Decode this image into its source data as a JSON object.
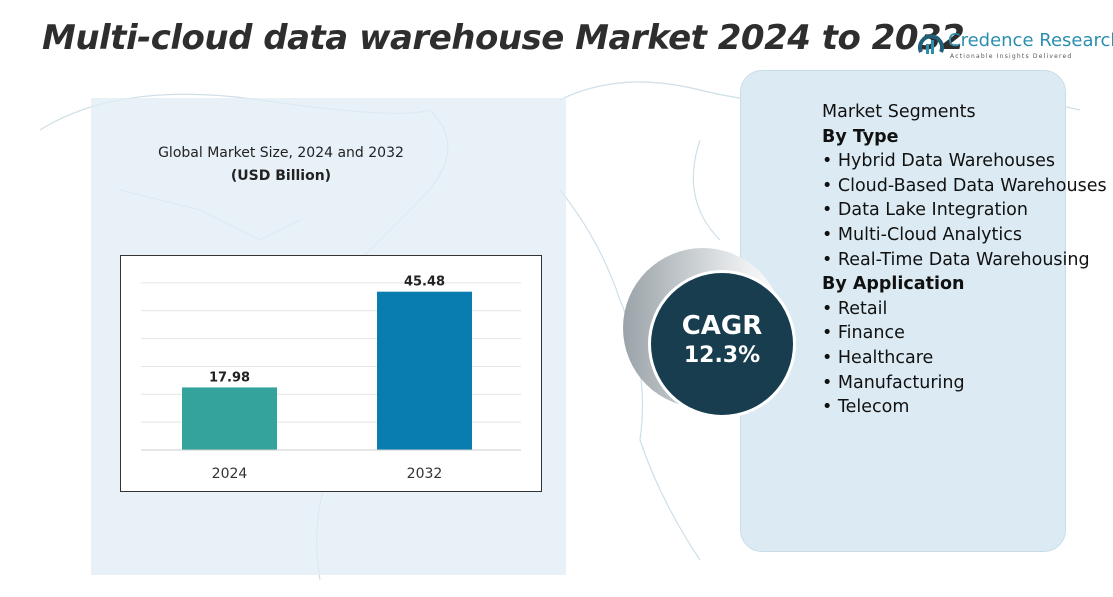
{
  "header": {
    "title": "Multi-cloud data warehouse Market 2024 to 2032"
  },
  "logo": {
    "name": "Credence Research",
    "tagline": "Actionable Insights Delivered"
  },
  "chart_data": {
    "type": "bar",
    "title": "Global Market Size, 2024 and 2032",
    "subtitle": "(USD Billion)",
    "categories": [
      "2024",
      "2032"
    ],
    "values": [
      17.98,
      45.48
    ],
    "data_labels": [
      "17.98",
      "45.48"
    ],
    "colors": [
      "#33a39b",
      "#0a7db0"
    ],
    "ylim": [
      0,
      52
    ],
    "grid": true,
    "xlabel": "",
    "ylabel": ""
  },
  "cagr": {
    "label": "CAGR",
    "value": "12.3%"
  },
  "segments": {
    "heading": "Market Segments",
    "groups": [
      {
        "title": "By Type",
        "items": [
          "Hybrid Data Warehouses",
          "Cloud-Based Data Warehouses",
          "Data Lake Integration",
          "Multi-Cloud Analytics",
          "Real-Time Data Warehousing"
        ]
      },
      {
        "title": "By Application",
        "items": [
          "Retail",
          "Finance",
          "Healthcare",
          "Manufacturing",
          "Telecom"
        ]
      }
    ]
  }
}
